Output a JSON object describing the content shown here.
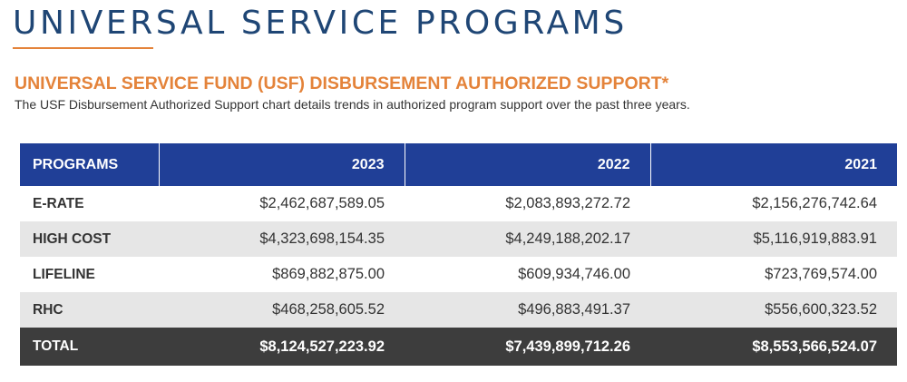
{
  "page": {
    "title": "UNIVERSAL SERVICE PROGRAMS"
  },
  "section": {
    "heading": "UNIVERSAL SERVICE FUND (USF) DISBURSEMENT AUTHORIZED SUPPORT*",
    "description": "The USF Disbursement Authorized Support chart details trends in authorized program support over the past three years."
  },
  "colors": {
    "title": "#1f4675",
    "accent": "#e4833a",
    "header_bg": "#203f97",
    "total_bg": "#3d3d3d",
    "stripe_bg": "#e6e6e6"
  },
  "chart_data": {
    "type": "table",
    "columns": [
      "PROGRAMS",
      "2023",
      "2022",
      "2021"
    ],
    "rows": [
      {
        "label": "E-RATE",
        "values": [
          "$2,462,687,589.05",
          "$2,083,893,272.72",
          "$2,156,276,742.64"
        ]
      },
      {
        "label": "HIGH COST",
        "values": [
          "$4,323,698,154.35",
          "$4,249,188,202.17",
          "$5,116,919,883.91"
        ]
      },
      {
        "label": "LIFELINE",
        "values": [
          "$869,882,875.00",
          "$609,934,746.00",
          "$723,769,574.00"
        ]
      },
      {
        "label": "RHC",
        "values": [
          "$468,258,605.52",
          "$496,883,491.37",
          "$556,600,323.52"
        ]
      }
    ],
    "total": {
      "label": "TOTAL",
      "values": [
        "$8,124,527,223.92",
        "$7,439,899,712.26",
        "$8,553,566,524.07"
      ]
    }
  }
}
